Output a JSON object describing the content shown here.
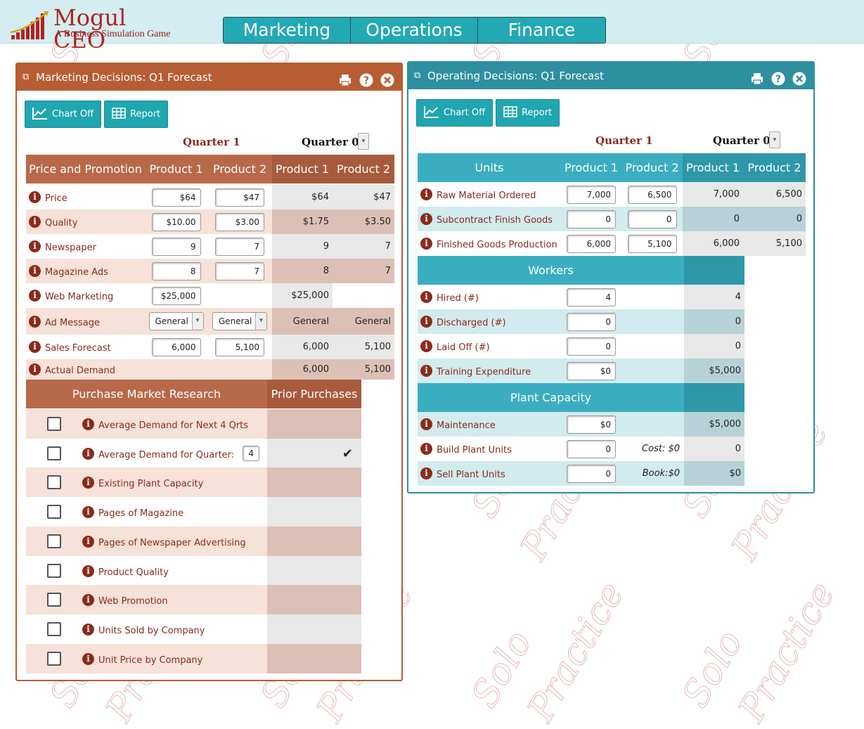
{
  "app": {
    "brand": "Mogul CEO",
    "tagline": "A Business Simulation Game",
    "watermark_words": [
      "Solo",
      "Practice"
    ]
  },
  "nav": {
    "tabs": [
      "Marketing",
      "Operations",
      "Finance"
    ]
  },
  "colors": {
    "marketing_header": "#b85c34",
    "operations_header": "#2e8fa0",
    "teal": "#23a9b3"
  },
  "marketing": {
    "title": "Marketing Decisions: Q1 Forecast",
    "buttons": {
      "chart": "Chart Off",
      "report": "Report"
    },
    "quarter1": "Quarter 1",
    "quarter0": "Quarter 0",
    "headers": [
      "Price and Promotion",
      "Product 1",
      "Product 2",
      "Product 1",
      "Product 2"
    ],
    "rows": [
      {
        "label": "Price",
        "p1": "$64",
        "p2": "$47",
        "q0p1": "$64",
        "q0p2": "$47"
      },
      {
        "label": "Quality",
        "p1": "$10.00",
        "p2": "$3.00",
        "q0p1": "$1.75",
        "q0p2": "$3.50"
      },
      {
        "label": "Newspaper",
        "p1": "9",
        "p2": "7",
        "q0p1": "9",
        "q0p2": "7"
      },
      {
        "label": "Magazine Ads",
        "p1": "8",
        "p2": "7",
        "q0p1": "8",
        "q0p2": "7"
      },
      {
        "label": "Web Marketing",
        "p1": "$25,000",
        "p2": "",
        "q0p1": "$25,000",
        "q0p2": ""
      },
      {
        "label": "Ad Message",
        "p1": "General",
        "p2": "General",
        "q0p1": "General",
        "q0p2": "General"
      },
      {
        "label": "Sales Forecast",
        "p1": "6,000",
        "p2": "5,100",
        "q0p1": "6,000",
        "q0p2": "5,100"
      },
      {
        "label": "Actual Demand",
        "p1": "",
        "p2": "",
        "q0p1": "6,000",
        "q0p2": "5,100"
      }
    ],
    "research": {
      "header": "Purchase Market Research",
      "prior": "Prior Purchases",
      "items": [
        {
          "label": "Average Demand for Next 4 Qrts",
          "prior": ""
        },
        {
          "label": "Average Demand for Quarter:",
          "input": "4",
          "prior": "✔"
        },
        {
          "label": "Existing Plant Capacity",
          "prior": ""
        },
        {
          "label": "Pages of Magazine",
          "prior": ""
        },
        {
          "label": "Pages of Newspaper Advertising",
          "prior": ""
        },
        {
          "label": "Product Quality",
          "prior": ""
        },
        {
          "label": "Web Promotion",
          "prior": ""
        },
        {
          "label": "Units Sold by Company",
          "prior": ""
        },
        {
          "label": "Unit Price by Company",
          "prior": ""
        }
      ]
    }
  },
  "operations": {
    "title": "Operating Decisions: Q1 Forecast",
    "buttons": {
      "chart": "Chart Off",
      "report": "Report"
    },
    "quarter1": "Quarter 1",
    "quarter0": "Quarter 0",
    "headers": [
      "Units",
      "Product 1",
      "Product 2",
      "Product 1",
      "Product 2"
    ],
    "units": [
      {
        "label": "Raw Material Ordered",
        "p1": "7,000",
        "p2": "6,500",
        "q0p1": "7,000",
        "q0p2": "6,500"
      },
      {
        "label": "Subcontract Finish Goods",
        "p1": "0",
        "p2": "0",
        "q0p1": "0",
        "q0p2": "0"
      },
      {
        "label": "Finished Goods Production",
        "p1": "6,000",
        "p2": "5,100",
        "q0p1": "6,000",
        "q0p2": "5,100"
      }
    ],
    "workers_header": "Workers",
    "workers": [
      {
        "label": "Hired (#)",
        "v": "4",
        "q0": "4"
      },
      {
        "label": "Discharged (#)",
        "v": "0",
        "q0": "0"
      },
      {
        "label": "Laid Off (#)",
        "v": "0",
        "q0": "0"
      },
      {
        "label": "Training Expenditure",
        "v": "$0",
        "q0": "$5,000"
      }
    ],
    "plant_header": "Plant Capacity",
    "plant": [
      {
        "label": "Maintenance",
        "v": "$0",
        "note": "",
        "q0": "$5,000"
      },
      {
        "label": "Build Plant Units",
        "v": "0",
        "note": "Cost: $0",
        "q0": "0"
      },
      {
        "label": "Sell Plant Units",
        "v": "0",
        "note": "Book:$0",
        "q0": "$0"
      }
    ]
  }
}
